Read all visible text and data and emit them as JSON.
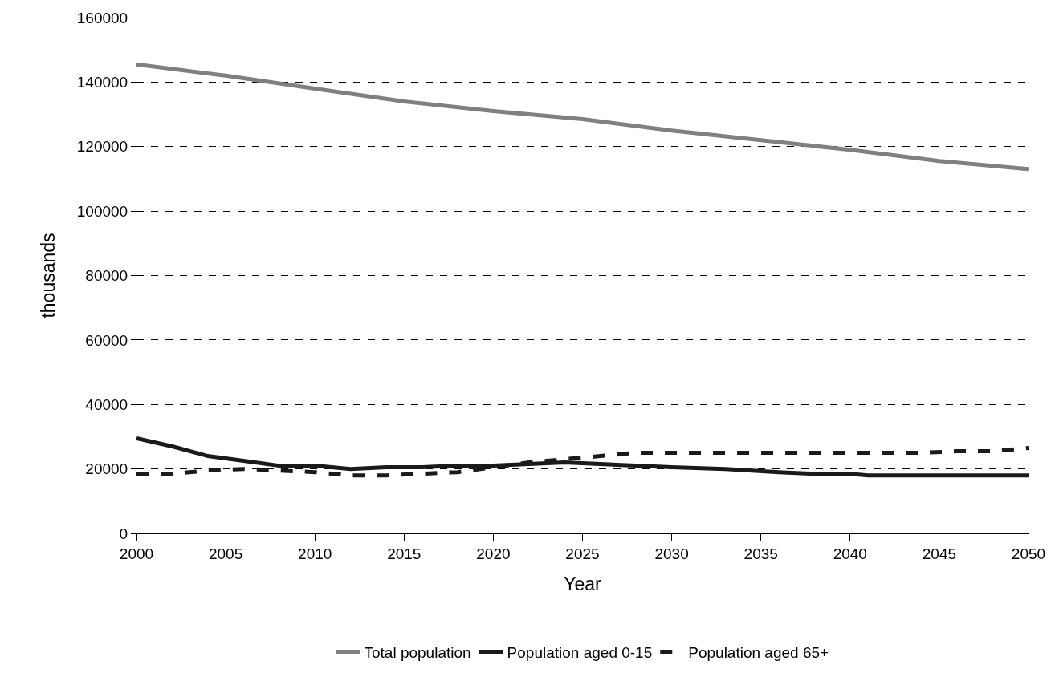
{
  "chart_data": {
    "type": "line",
    "xlabel": "Year",
    "ylabel": "thousands",
    "xlim": [
      2000,
      2050
    ],
    "xticks": [
      2000,
      2005,
      2010,
      2015,
      2020,
      2025,
      2030,
      2035,
      2040,
      2045,
      2050
    ],
    "ylim": [
      0,
      160000
    ],
    "yticks": [
      0,
      20000,
      40000,
      60000,
      80000,
      100000,
      120000,
      140000,
      160000
    ],
    "grid": "y",
    "legend": "bottom",
    "marker": "none",
    "series": [
      {
        "name": "Total population",
        "color": "#808080",
        "line_style": "solid",
        "x": [
          2000,
          2005,
          2010,
          2015,
          2020,
          2025,
          2030,
          2035,
          2040,
          2045,
          2050
        ],
        "values": [
          145500,
          142000,
          138000,
          134000,
          131000,
          128500,
          125000,
          122000,
          119000,
          115500,
          113000
        ]
      },
      {
        "name": "Population aged 0-15",
        "color": "#1a1a1a",
        "line_style": "solid",
        "x": [
          2000,
          2002,
          2004,
          2006,
          2008,
          2010,
          2012,
          2014,
          2016,
          2018,
          2020,
          2022,
          2024,
          2026,
          2028,
          2030,
          2033,
          2036,
          2038,
          2040,
          2041,
          2050
        ],
        "values": [
          29500,
          27000,
          24000,
          22500,
          21000,
          21000,
          20000,
          20500,
          20500,
          21000,
          21000,
          21500,
          22000,
          21500,
          21000,
          20500,
          20000,
          19000,
          18500,
          18500,
          18000,
          18000
        ]
      },
      {
        "name": "Population aged 65+",
        "color": "#1a1a1a",
        "line_style": "dashed",
        "x": [
          2000,
          2002,
          2004,
          2006,
          2008,
          2010,
          2012,
          2014,
          2016,
          2018,
          2020,
          2022,
          2024,
          2026,
          2028,
          2030,
          2040,
          2044,
          2046,
          2048,
          2050
        ],
        "values": [
          18500,
          18500,
          19500,
          20000,
          19500,
          19000,
          18000,
          18000,
          18500,
          19000,
          20500,
          22000,
          23000,
          24000,
          25000,
          25000,
          25000,
          25000,
          25500,
          25500,
          26500
        ]
      }
    ]
  }
}
